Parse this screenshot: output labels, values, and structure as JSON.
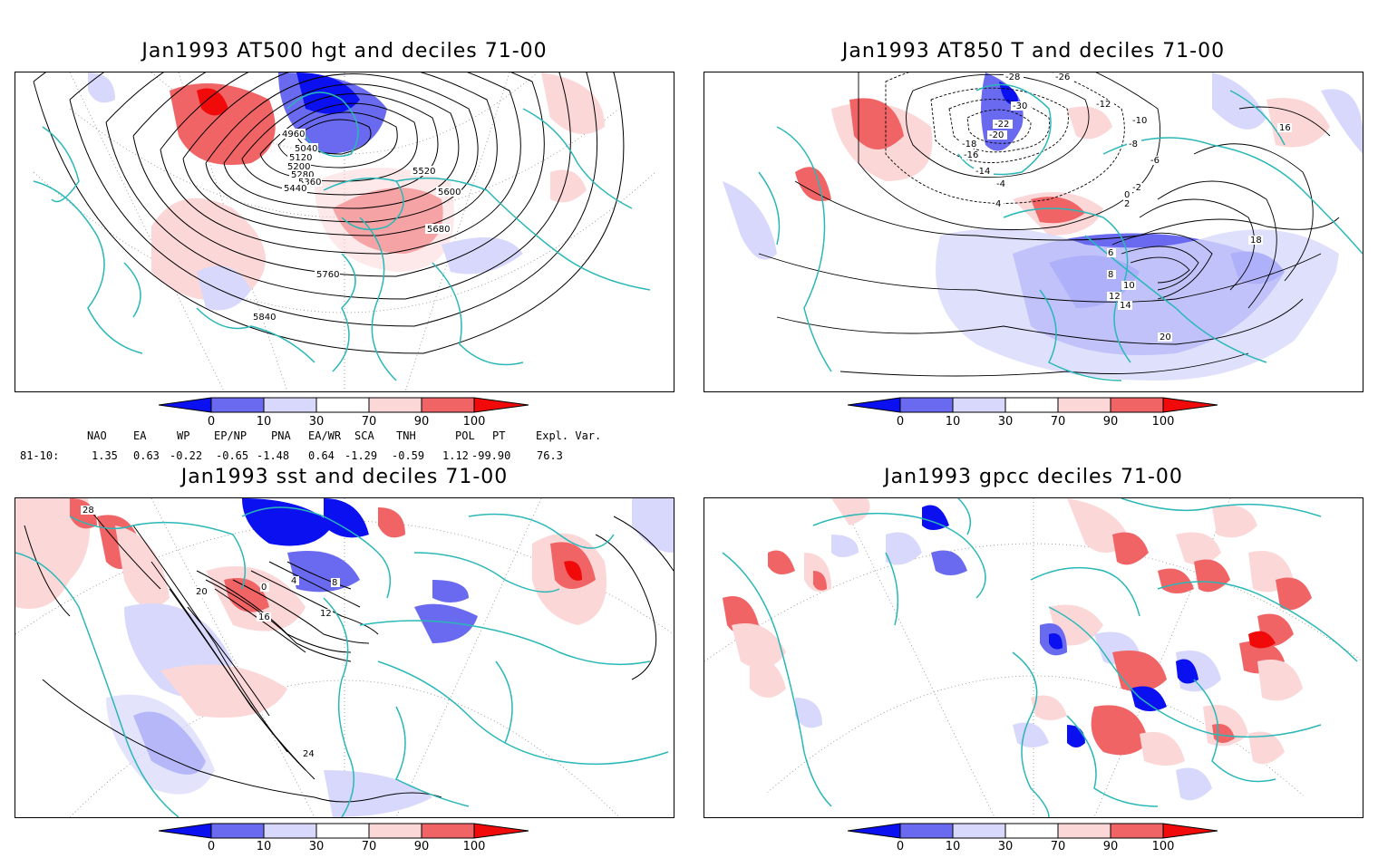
{
  "colors": {
    "coast": "#2ab7b7",
    "contour": "#000000",
    "dark_blue": "#0a10f0",
    "mid_blue": "#6a6af0",
    "light_blue": "#d7d8fb",
    "light_red": "#fbd7d8",
    "mid_red": "#f06466",
    "dark_red": "#f00a0a"
  },
  "colorbar": {
    "ticks": [
      "0",
      "10",
      "30",
      "70",
      "90",
      "100"
    ]
  },
  "panels": [
    {
      "title": "Jan1993 AT500 hgt and deciles 71-00",
      "contour_labels": [
        "4960",
        "5040",
        "5120",
        "5200",
        "5280",
        "5360",
        "5440",
        "5520",
        "5600",
        "5680",
        "5760",
        "5840"
      ]
    },
    {
      "title": "Jan1993 AT850 T and deciles 71-00",
      "contour_labels": [
        "-28",
        "-26",
        "-30",
        "-22",
        "-20",
        "-18",
        "-16",
        "-14",
        "-12",
        "-10",
        "-8",
        "-6",
        "-4",
        "-2",
        "0",
        "2",
        "4",
        "6",
        "8",
        "10",
        "12",
        "14",
        "16",
        "18",
        "20"
      ]
    },
    {
      "title": "Jan1993 sst and deciles 71-00",
      "contour_labels": [
        "28",
        "24",
        "20",
        "16",
        "12",
        "8",
        "4",
        "0"
      ]
    },
    {
      "title": "Jan1993 gpcc deciles 71-00",
      "contour_labels": []
    }
  ],
  "indices": {
    "headers": [
      "NAO",
      "EA",
      "WP",
      "EP/NP",
      "PNA",
      "EA/WR",
      "SCA",
      "TNH",
      "POL",
      "PT",
      "Expl. Var."
    ],
    "row_label": "81-10:",
    "values": [
      "1.35",
      "0.63",
      "-0.22",
      "-0.65",
      "-1.48",
      "0.64",
      "-1.29",
      "-0.59",
      "1.12",
      "-99.90",
      "76.3"
    ]
  }
}
